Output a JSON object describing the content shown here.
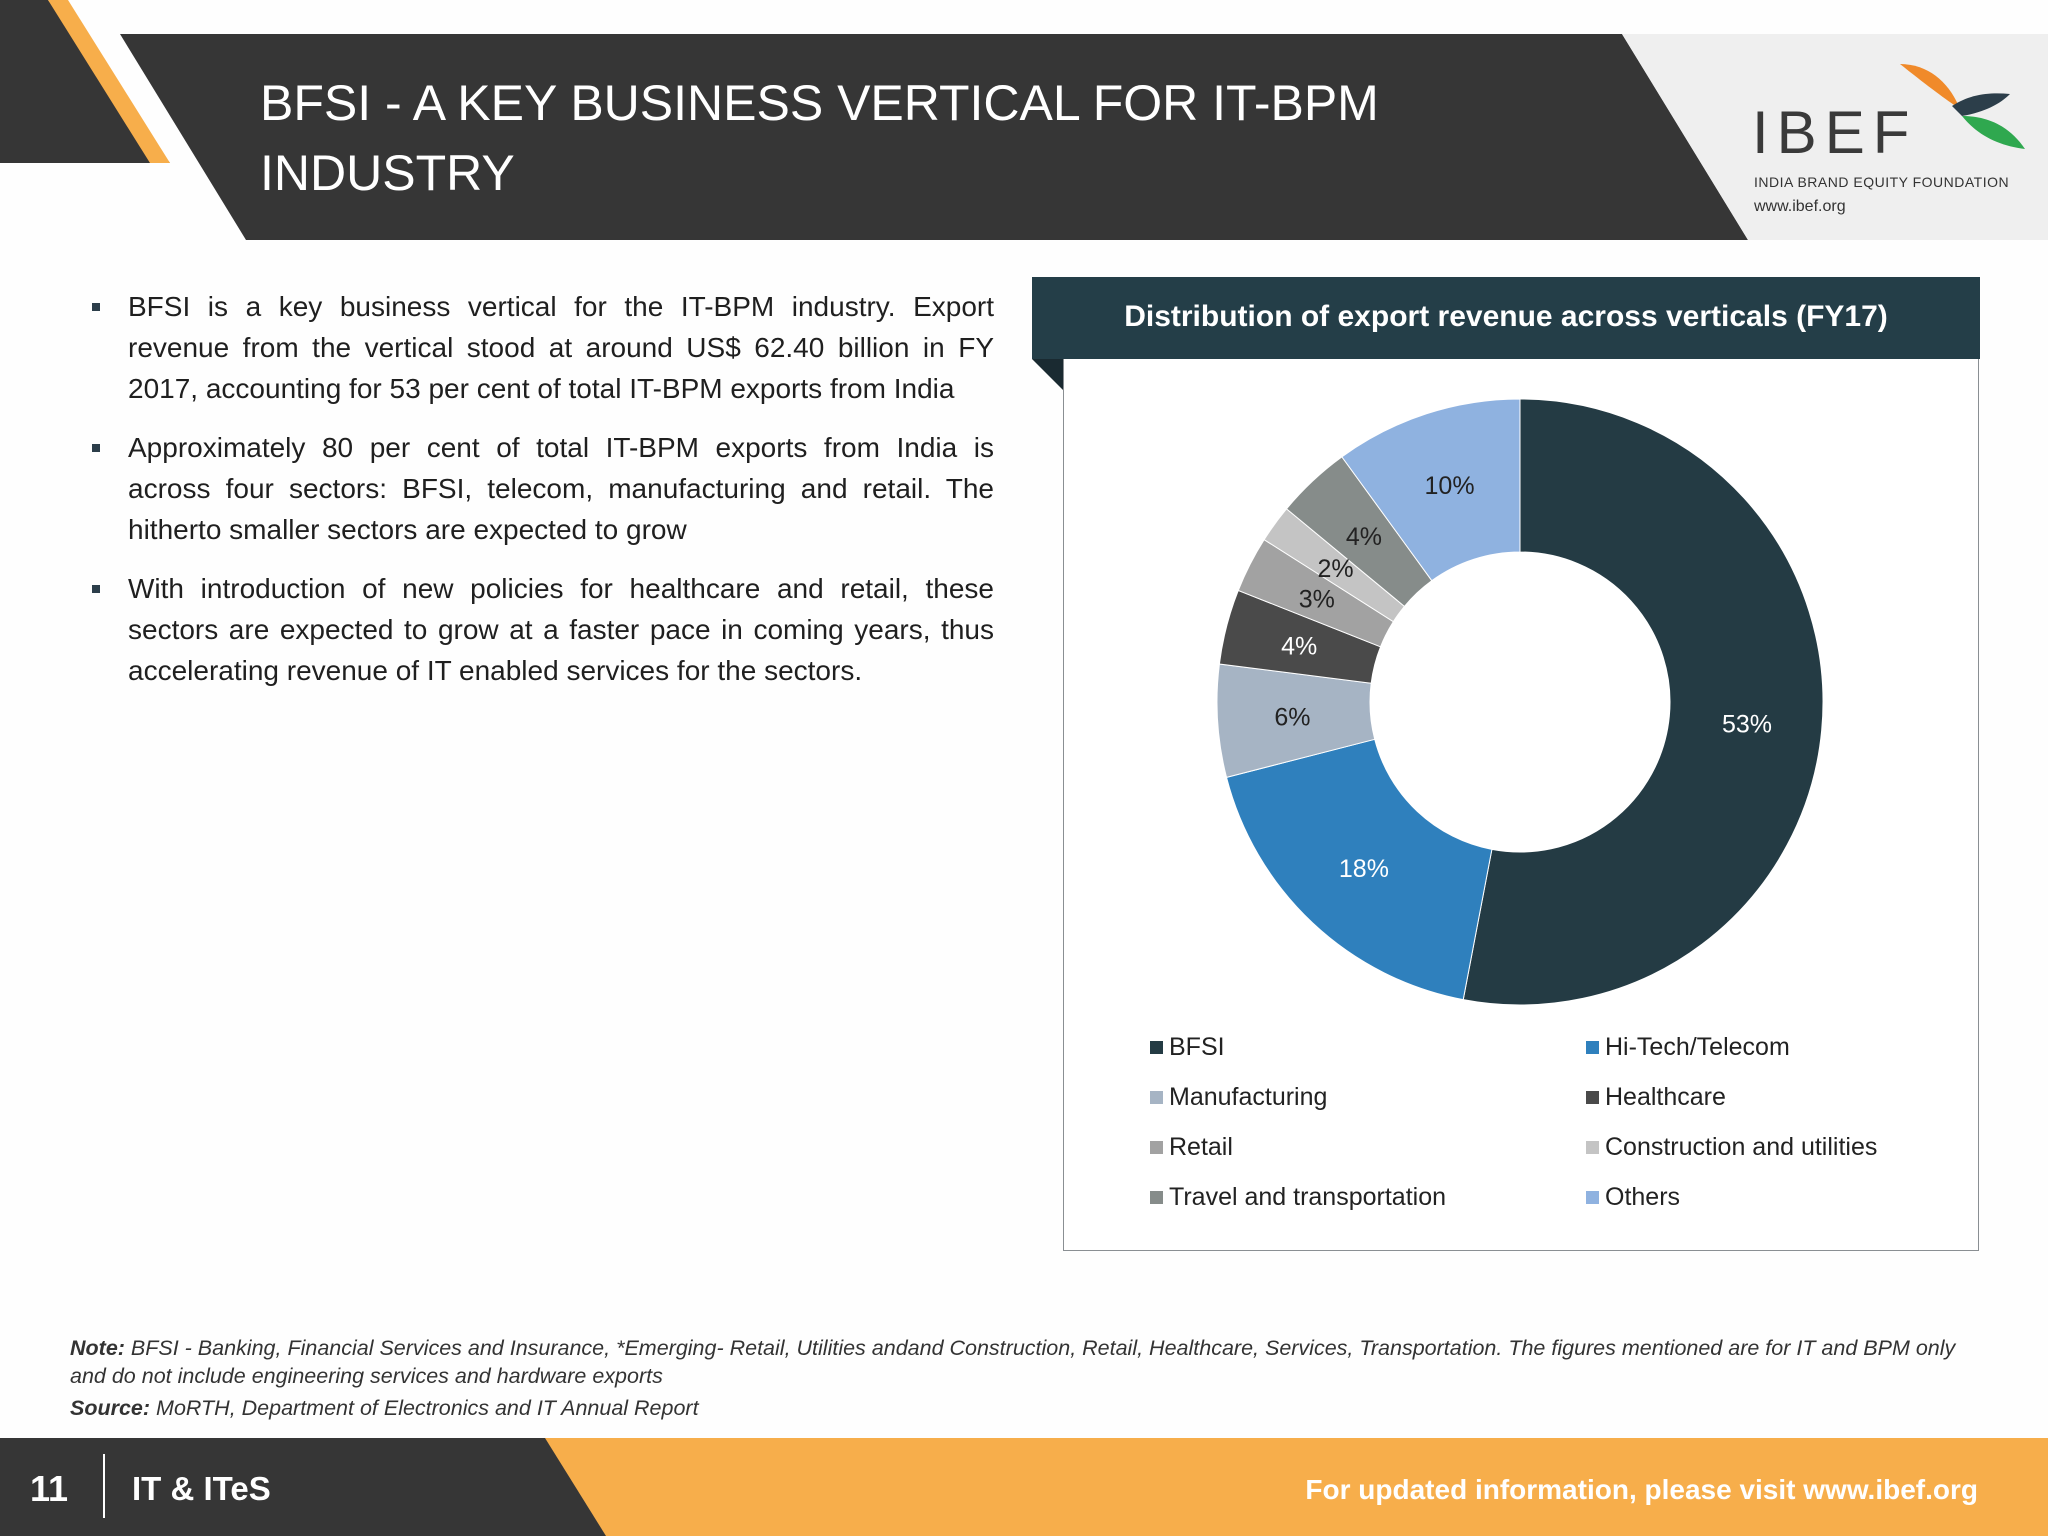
{
  "header": {
    "title": "BFSI - A KEY BUSINESS VERTICAL FOR IT-BPM INDUSTRY",
    "logo": {
      "name": "IBEF",
      "subtitle": "INDIA BRAND EQUITY FOUNDATION",
      "url": "www.ibef.org"
    }
  },
  "bullets": [
    "BFSI is a key business vertical for the IT-BPM industry. Export revenue from the vertical stood at around US$ 62.40 billion in FY 2017, accounting for 53 per cent of total IT-BPM exports from India",
    "Approximately 80 per cent of total IT-BPM exports from India is across four sectors: BFSI, telecom, manufacturing and retail. The hitherto smaller sectors are expected to grow",
    "With introduction of new policies for healthcare and retail, these sectors are expected to grow at a faster pace in coming years, thus accelerating revenue of IT enabled services for the sectors."
  ],
  "chart_data": {
    "type": "pie",
    "title": "Distribution of export revenue across verticals (FY17)",
    "unit": "%",
    "slices": [
      {
        "label": "BFSI",
        "value": 53,
        "display": "53%",
        "color": "#243b44",
        "label_color": "#ffffff"
      },
      {
        "label": "Hi-Tech/Telecom",
        "value": 18,
        "display": "18%",
        "color": "#2f80bd",
        "label_color": "#ffffff"
      },
      {
        "label": "Manufacturing",
        "value": 6,
        "display": "6%",
        "color": "#a6b4c4",
        "label_color": "#222222"
      },
      {
        "label": "Healthcare",
        "value": 4,
        "display": "4%",
        "color": "#4a4a4a",
        "label_color": "#ffffff"
      },
      {
        "label": "Retail",
        "value": 3,
        "display": "3%",
        "color": "#a2a2a2",
        "label_color": "#222222"
      },
      {
        "label": "Construction and utilities",
        "value": 2,
        "display": "2%",
        "color": "#c4c4c4",
        "label_color": "#222222"
      },
      {
        "label": "Travel and transportation",
        "value": 4,
        "display": "4%",
        "color": "#868c8a",
        "label_color": "#222222"
      },
      {
        "label": "Others",
        "value": 10,
        "display": "10%",
        "color": "#8fb2e0",
        "label_color": "#222222"
      }
    ],
    "legend": {
      "placement": "bottom",
      "order": [
        "BFSI",
        "Hi-Tech/Telecom",
        "Manufacturing",
        "Healthcare",
        "Retail",
        "Construction and utilities",
        "Travel and transportation",
        "Others"
      ]
    }
  },
  "notes": {
    "note_label": "Note:",
    "note_text": " BFSI - Banking, Financial Services and Insurance, *Emerging- Retail, Utilities andand  Construction, Retail, Healthcare, Services, Transportation. The figures mentioned are for IT and BPM only and do not include engineering services and hardware exports",
    "source_label": "Source:",
    "source_text": " MoRTH, Department of Electronics and IT Annual Report"
  },
  "footer": {
    "page_number": "11",
    "section": "IT & ITeS",
    "link_text": "For updated information, please visit www.ibef.org"
  },
  "colors": {
    "header_dark": "#363636",
    "accent_orange": "#f7ae4b",
    "chart_title_bg": "#243e48"
  }
}
